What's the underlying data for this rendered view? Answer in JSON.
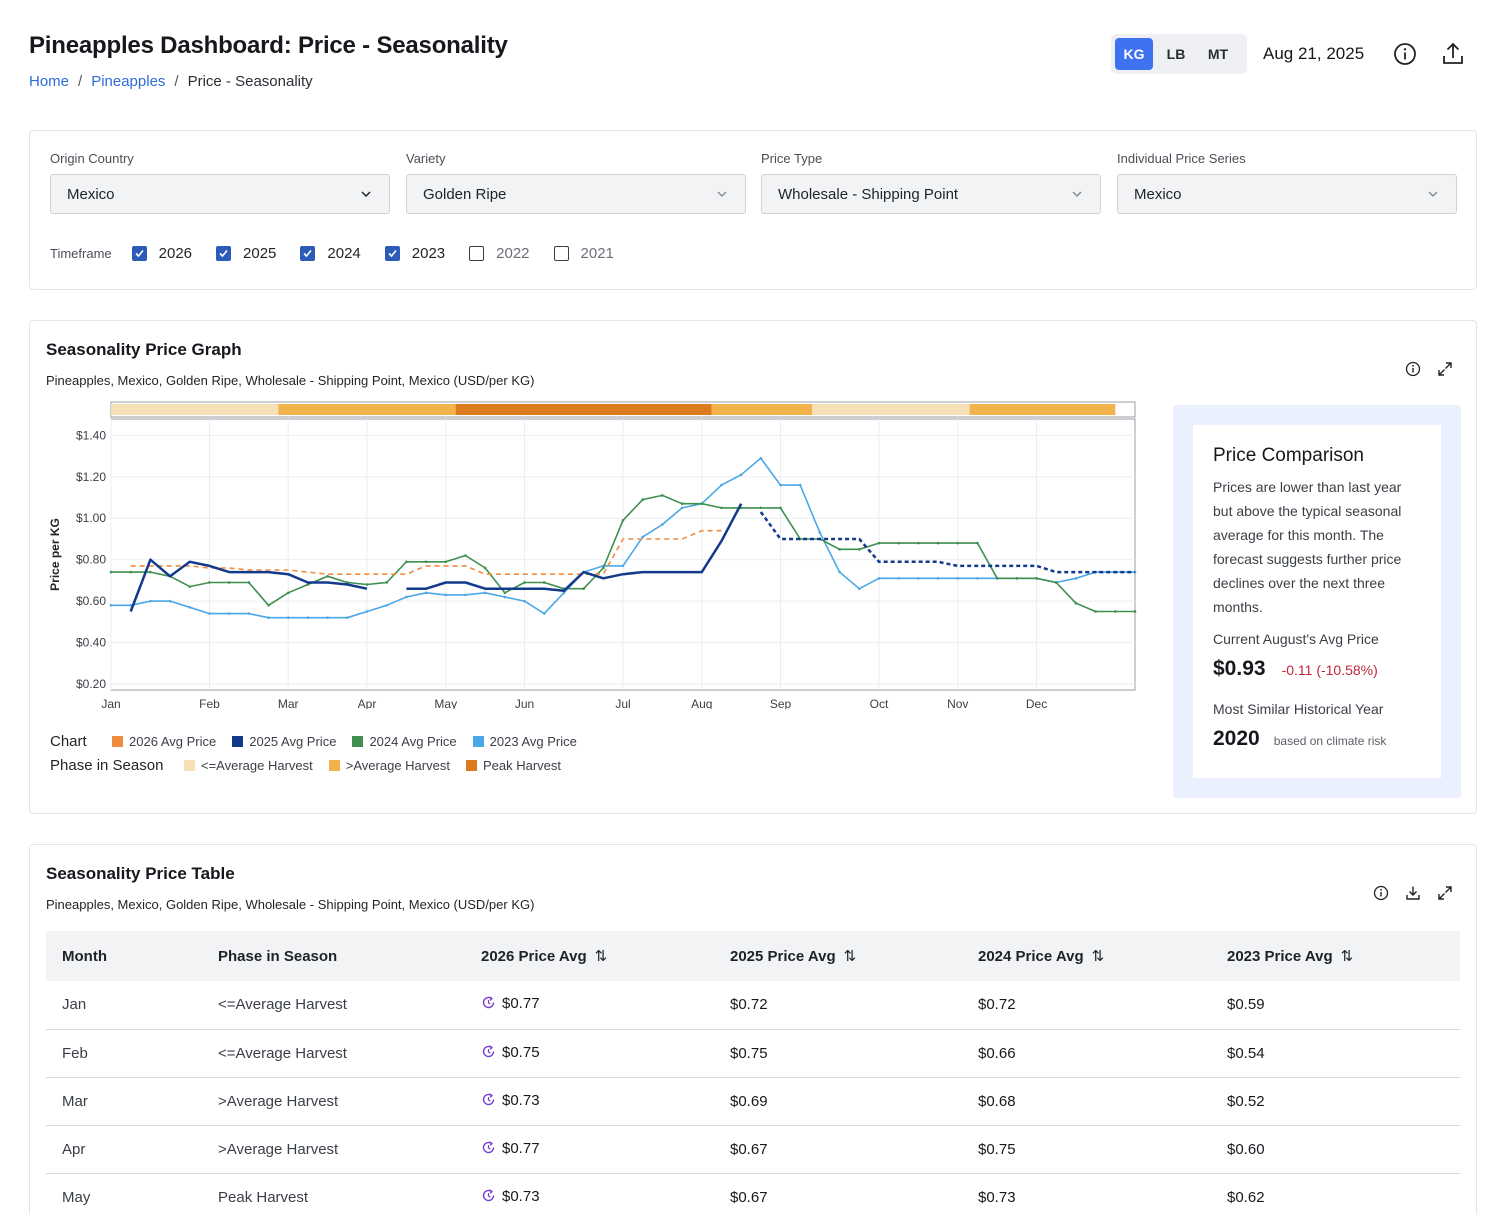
{
  "header": {
    "title": "Pineapples Dashboard: Price - Seasonality",
    "breadcrumb": [
      "Home",
      "Pineapples",
      "Price - Seasonality"
    ],
    "units": [
      "KG",
      "LB",
      "MT"
    ],
    "active_unit": "KG",
    "date": "Aug 21, 2025",
    "icons": [
      "info-icon",
      "share-upload-icon"
    ]
  },
  "filters": {
    "origin_country": {
      "label": "Origin Country",
      "value": "Mexico"
    },
    "variety": {
      "label": "Variety",
      "value": "Golden Ripe"
    },
    "price_type": {
      "label": "Price Type",
      "value": "Wholesale - Shipping Point"
    },
    "price_series": {
      "label": "Individual Price Series",
      "value": "Mexico"
    },
    "timeframe_label": "Timeframe",
    "years": [
      {
        "label": "2026",
        "checked": true
      },
      {
        "label": "2025",
        "checked": true
      },
      {
        "label": "2024",
        "checked": true
      },
      {
        "label": "2023",
        "checked": true
      },
      {
        "label": "2022",
        "checked": false
      },
      {
        "label": "2021",
        "checked": false
      }
    ]
  },
  "graph": {
    "title": "Seasonality Price Graph",
    "subtitle": "Pineapples, Mexico, Golden Ripe, Wholesale - Shipping Point, Mexico (USD/per KG)",
    "legend_chart_title": "Chart",
    "legend_phase_title": "Phase in Season",
    "colors": {
      "s2026": "#f08a3c",
      "s2025": "#123a8c",
      "s2024": "#3f8f4f",
      "s2023": "#4aa8e8",
      "phase_low": "#f7e0b5",
      "phase_mid": "#f2b24c",
      "phase_peak": "#dc7a1e"
    }
  },
  "chart_data": {
    "type": "line",
    "ylabel": "Price per KG",
    "xlabel": "",
    "ylim": [
      0.2,
      1.45
    ],
    "yticks": [
      "$1.40",
      "$1.20",
      "$1.00",
      "$0.80",
      "$0.60",
      "$0.40",
      "$0.20"
    ],
    "ytick_values": [
      1.4,
      1.2,
      1.0,
      0.8,
      0.6,
      0.4,
      0.2
    ],
    "month_labels": [
      "Jan",
      "Feb",
      "Mar",
      "Apr",
      "May",
      "Jun",
      "Jul",
      "Aug",
      "Sep",
      "Oct",
      "Nov",
      "Dec"
    ],
    "month_ticks": [
      1,
      6,
      10,
      14,
      18,
      22,
      27,
      31,
      35,
      40,
      44,
      48
    ],
    "week_range": [
      1,
      53
    ],
    "phase_bands": [
      {
        "phase": "<=Average Harvest",
        "from": 1,
        "to": 9.5
      },
      {
        "phase": ">Average Harvest",
        "from": 9.5,
        "to": 18.5
      },
      {
        "phase": "Peak Harvest",
        "from": 18.5,
        "to": 31.5
      },
      {
        "phase": ">Average Harvest",
        "from": 31.5,
        "to": 36.6
      },
      {
        "phase": "<=Average Harvest",
        "from": 36.6,
        "to": 44.6
      },
      {
        "phase": ">Average Harvest",
        "from": 44.6,
        "to": 52
      }
    ],
    "series": [
      {
        "name": "2026 Avg Price",
        "color_key": "s2026",
        "style": "dashed",
        "width": 1.6,
        "points": [
          [
            2,
            0.77
          ],
          [
            3,
            0.77
          ],
          [
            4,
            0.77
          ],
          [
            5,
            0.77
          ],
          [
            6,
            0.76
          ],
          [
            7,
            0.76
          ],
          [
            8,
            0.75
          ],
          [
            9,
            0.75
          ],
          [
            10,
            0.75
          ],
          [
            11,
            0.74
          ],
          [
            12,
            0.73
          ],
          [
            13,
            0.73
          ],
          [
            14,
            0.73
          ],
          [
            15,
            0.73
          ],
          [
            16,
            0.73
          ],
          [
            17,
            0.77
          ],
          [
            18,
            0.77
          ],
          [
            19,
            0.77
          ],
          [
            20,
            0.73
          ],
          [
            21,
            0.73
          ],
          [
            22,
            0.73
          ],
          [
            23,
            0.73
          ],
          [
            24,
            0.73
          ],
          [
            25,
            0.73
          ],
          [
            26,
            0.73
          ],
          [
            27,
            0.9
          ],
          [
            28,
            0.9
          ],
          [
            29,
            0.9
          ],
          [
            30,
            0.9
          ],
          [
            31,
            0.94
          ],
          [
            32,
            0.94
          ]
        ]
      },
      {
        "name": "2025 Avg Price",
        "color_key": "s2025",
        "style": "solid",
        "width": 2.5,
        "points": [
          [
            2,
            0.55
          ],
          [
            3,
            0.8
          ],
          [
            4,
            0.72
          ],
          [
            5,
            0.79
          ],
          [
            6,
            0.77
          ],
          [
            7,
            0.74
          ],
          [
            8,
            0.74
          ],
          [
            9,
            0.74
          ],
          [
            10,
            0.73
          ],
          [
            11,
            0.69
          ],
          [
            12,
            0.69
          ],
          [
            13,
            0.68
          ],
          [
            14,
            0.66
          ],
          null,
          [
            16,
            0.66
          ],
          [
            17,
            0.66
          ],
          [
            18,
            0.69
          ],
          [
            19,
            0.69
          ],
          [
            20,
            0.66
          ],
          [
            21,
            0.66
          ],
          [
            22,
            0.66
          ],
          [
            23,
            0.66
          ],
          [
            24,
            0.65
          ],
          [
            25,
            0.74
          ],
          [
            26,
            0.71
          ],
          [
            27,
            0.73
          ],
          [
            28,
            0.74
          ],
          [
            29,
            0.74
          ],
          [
            30,
            0.74
          ],
          [
            31,
            0.74
          ],
          [
            32,
            0.89
          ],
          [
            33,
            1.07
          ]
        ]
      },
      {
        "name": "2025 Forecast",
        "color_key": "s2025",
        "style": "dotted",
        "width": 2.5,
        "points": [
          [
            34,
            1.03
          ],
          [
            35,
            0.9
          ],
          [
            36,
            0.9
          ],
          [
            37,
            0.9
          ],
          [
            38,
            0.9
          ],
          [
            39,
            0.9
          ],
          [
            40,
            0.79
          ],
          [
            41,
            0.79
          ],
          [
            42,
            0.79
          ],
          [
            43,
            0.79
          ],
          [
            44,
            0.77
          ],
          [
            45,
            0.77
          ],
          [
            46,
            0.77
          ],
          [
            47,
            0.77
          ],
          [
            48,
            0.77
          ],
          [
            49,
            0.74
          ],
          [
            50,
            0.74
          ],
          [
            51,
            0.74
          ],
          [
            52,
            0.74
          ],
          [
            53,
            0.74
          ]
        ]
      },
      {
        "name": "2024 Avg Price",
        "color_key": "s2024",
        "style": "solid",
        "width": 1.6,
        "points": [
          [
            1,
            0.74
          ],
          [
            2,
            0.74
          ],
          [
            3,
            0.74
          ],
          [
            4,
            0.72
          ],
          [
            5,
            0.67
          ],
          [
            6,
            0.69
          ],
          [
            7,
            0.69
          ],
          [
            8,
            0.69
          ],
          [
            9,
            0.58
          ],
          [
            10,
            0.64
          ],
          [
            11,
            0.68
          ],
          [
            12,
            0.72
          ],
          [
            13,
            0.69
          ],
          [
            14,
            0.68
          ],
          [
            15,
            0.69
          ],
          [
            16,
            0.79
          ],
          [
            17,
            0.79
          ],
          [
            18,
            0.79
          ],
          [
            19,
            0.82
          ],
          [
            20,
            0.76
          ],
          [
            21,
            0.64
          ],
          [
            22,
            0.69
          ],
          [
            23,
            0.69
          ],
          [
            24,
            0.66
          ],
          [
            25,
            0.66
          ],
          [
            26,
            0.76
          ],
          [
            27,
            0.99
          ],
          [
            28,
            1.09
          ],
          [
            29,
            1.11
          ],
          [
            30,
            1.07
          ],
          [
            31,
            1.07
          ],
          [
            32,
            1.05
          ],
          [
            33,
            1.05
          ],
          [
            34,
            1.05
          ],
          [
            35,
            1.05
          ],
          [
            36,
            0.9
          ],
          [
            37,
            0.9
          ],
          [
            38,
            0.85
          ],
          [
            39,
            0.85
          ],
          [
            40,
            0.88
          ],
          [
            41,
            0.88
          ],
          [
            42,
            0.88
          ],
          [
            43,
            0.88
          ],
          [
            44,
            0.88
          ],
          [
            45,
            0.88
          ],
          [
            46,
            0.71
          ],
          [
            47,
            0.71
          ],
          [
            48,
            0.71
          ],
          [
            49,
            0.69
          ],
          [
            50,
            0.59
          ],
          [
            51,
            0.55
          ],
          [
            52,
            0.55
          ],
          [
            53,
            0.55
          ]
        ]
      },
      {
        "name": "2023 Avg Price",
        "color_key": "s2023",
        "style": "solid",
        "width": 1.6,
        "points": [
          [
            1,
            0.58
          ],
          [
            2,
            0.58
          ],
          [
            3,
            0.6
          ],
          [
            4,
            0.6
          ],
          [
            5,
            0.57
          ],
          [
            6,
            0.54
          ],
          [
            7,
            0.54
          ],
          [
            8,
            0.54
          ],
          [
            9,
            0.52
          ],
          [
            10,
            0.52
          ],
          [
            11,
            0.52
          ],
          [
            12,
            0.52
          ],
          [
            13,
            0.52
          ],
          [
            14,
            0.55
          ],
          [
            15,
            0.58
          ],
          [
            16,
            0.62
          ],
          [
            17,
            0.64
          ],
          [
            18,
            0.63
          ],
          [
            19,
            0.63
          ],
          [
            20,
            0.64
          ],
          [
            21,
            0.62
          ],
          [
            22,
            0.6
          ],
          [
            23,
            0.54
          ],
          [
            24,
            0.64
          ],
          [
            25,
            0.74
          ],
          [
            26,
            0.77
          ],
          [
            27,
            0.77
          ],
          [
            28,
            0.91
          ],
          [
            29,
            0.97
          ],
          [
            30,
            1.05
          ],
          [
            31,
            1.07
          ],
          [
            32,
            1.16
          ],
          [
            33,
            1.21
          ],
          [
            34,
            1.29
          ],
          [
            35,
            1.16
          ],
          [
            36,
            1.16
          ],
          [
            37,
            0.93
          ],
          [
            38,
            0.74
          ],
          [
            39,
            0.66
          ],
          [
            40,
            0.71
          ],
          [
            41,
            0.71
          ],
          [
            42,
            0.71
          ],
          [
            43,
            0.71
          ],
          [
            44,
            0.71
          ],
          [
            45,
            0.71
          ],
          [
            46,
            0.71
          ],
          [
            47,
            0.71
          ],
          [
            48,
            0.71
          ],
          [
            49,
            0.69
          ],
          [
            50,
            0.71
          ],
          [
            51,
            0.74
          ],
          [
            52,
            0.74
          ],
          [
            53,
            0.74
          ]
        ]
      }
    ],
    "legend": [
      {
        "name": "2026 Avg Price",
        "color_key": "s2026"
      },
      {
        "name": "2025 Avg Price",
        "color_key": "s2025"
      },
      {
        "name": "2024 Avg Price",
        "color_key": "s2024"
      },
      {
        "name": "2023 Avg Price",
        "color_key": "s2023"
      }
    ],
    "phase_legend": [
      {
        "name": "<=Average Harvest",
        "color_key": "phase_low"
      },
      {
        "name": ">Average Harvest",
        "color_key": "phase_mid"
      },
      {
        "name": "Peak Harvest",
        "color_key": "phase_peak"
      }
    ]
  },
  "comparison": {
    "title": "Price Comparison",
    "text": "Prices are lower than last year but above the typical seasonal average for this month. The forecast suggests further price declines over the next three months.",
    "current_label": "Current August's Avg Price",
    "current_value": "$0.93",
    "current_change": "-0.11 (-10.58%)",
    "similar_label": "Most Similar Historical Year",
    "similar_year": "2020",
    "similar_note": "based on climate risk"
  },
  "table": {
    "title": "Seasonality Price Table",
    "subtitle": "Pineapples, Mexico, Golden Ripe, Wholesale - Shipping Point, Mexico (USD/per KG)",
    "columns": [
      "Month",
      "Phase in Season",
      "2026 Price Avg",
      "2025 Price Avg",
      "2024 Price Avg",
      "2023 Price Avg"
    ],
    "rows": [
      [
        "Jan",
        "<=Average Harvest",
        "$0.77",
        "$0.72",
        "$0.72",
        "$0.59"
      ],
      [
        "Feb",
        "<=Average Harvest",
        "$0.75",
        "$0.75",
        "$0.66",
        "$0.54"
      ],
      [
        "Mar",
        ">Average Harvest",
        "$0.73",
        "$0.69",
        "$0.68",
        "$0.52"
      ],
      [
        "Apr",
        ">Average Harvest",
        "$0.77",
        "$0.67",
        "$0.75",
        "$0.60"
      ],
      [
        "May",
        "Peak Harvest",
        "$0.73",
        "$0.67",
        "$0.73",
        "$0.62"
      ]
    ]
  }
}
